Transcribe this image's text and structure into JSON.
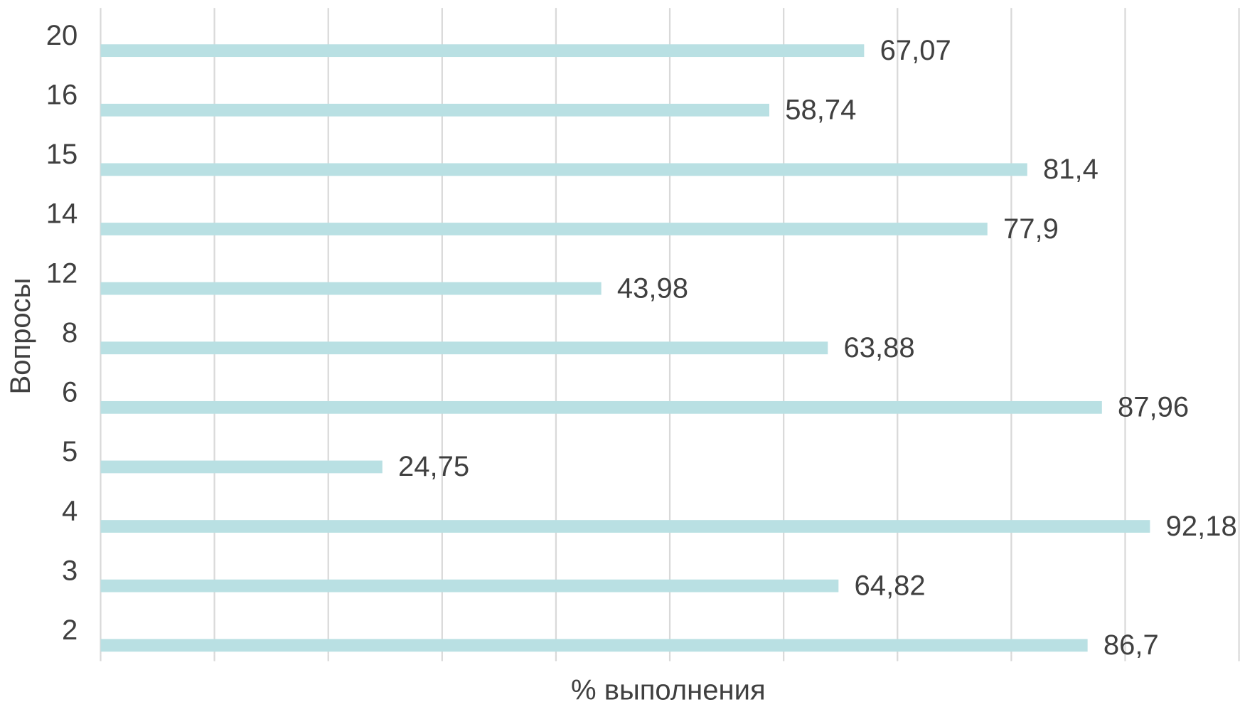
{
  "chart_data": {
    "type": "barh",
    "x_label": "% выполнения",
    "y_label": "Вопросы",
    "categories": [
      "20",
      "16",
      "15",
      "14",
      "12",
      "8",
      "6",
      "5",
      "4",
      "3",
      "2"
    ],
    "values": [
      67.07,
      58.74,
      81.4,
      77.9,
      43.98,
      63.88,
      87.96,
      24.75,
      92.18,
      64.82,
      86.7
    ],
    "value_labels": [
      "67,07",
      "58,74",
      "81,4",
      "77,9",
      "43,98",
      "63,88",
      "87,96",
      "24,75",
      "92,18",
      "64,82",
      "86,7"
    ],
    "color": "#b9e0e3",
    "xlim": [
      0,
      100
    ],
    "xticks": [
      0,
      10,
      20,
      30,
      40,
      50,
      60,
      70,
      80,
      90,
      100
    ],
    "grid": true
  }
}
